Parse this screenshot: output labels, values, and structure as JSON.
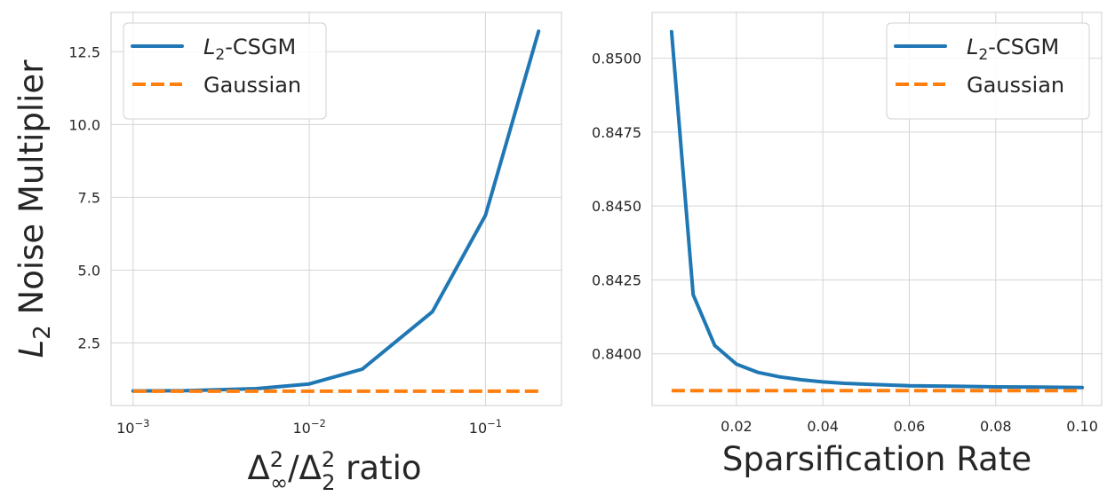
{
  "chart_data": [
    {
      "type": "line",
      "xscale": "log",
      "xlim": [
        0.00075,
        0.27
      ],
      "ylim": [
        0.35,
        13.85
      ],
      "xticks": [
        0.001,
        0.01,
        0.1
      ],
      "xtick_labels": [
        {
          "base": "10",
          "exp": "−3"
        },
        {
          "base": "10",
          "exp": "−2"
        },
        {
          "base": "10",
          "exp": "−1"
        }
      ],
      "yticks": [
        2.5,
        5.0,
        7.5,
        10.0,
        12.5
      ],
      "ytick_labels": [
        "2.5",
        "5.0",
        "7.5",
        "10.0",
        "12.5"
      ],
      "xlabel": {
        "delta": "Δ",
        "sup1": "2",
        "sub1": "∞",
        "slash": "/",
        "sup2": "2",
        "sub2": "2",
        "suffix": " ratio"
      },
      "ylabel": {
        "main": "L",
        "sub": "2",
        "rest": " Noise Multiplier"
      },
      "grid": true,
      "legend_position": "upper-left",
      "series": [
        {
          "name": {
            "main": "L",
            "sub": "2",
            "rest": "-CSGM"
          },
          "color": "#1f77b4",
          "style": "solid",
          "x": [
            0.001,
            0.002,
            0.005,
            0.01,
            0.02,
            0.05,
            0.1,
            0.2
          ],
          "y": [
            0.85,
            0.86,
            0.93,
            1.09,
            1.6,
            3.57,
            6.88,
            13.2
          ]
        },
        {
          "name": {
            "main": "Gaussian"
          },
          "color": "#ff7f0e",
          "style": "dashed",
          "x": [
            0.001,
            0.2
          ],
          "y": [
            0.84,
            0.84
          ]
        }
      ]
    },
    {
      "type": "line",
      "xscale": "linear",
      "xlim": [
        0.0005,
        0.1045
      ],
      "ylim": [
        0.83825,
        0.85155
      ],
      "xticks": [
        0.02,
        0.04,
        0.06,
        0.08,
        0.1
      ],
      "xtick_labels": [
        "0.02",
        "0.04",
        "0.06",
        "0.08",
        "0.10"
      ],
      "yticks": [
        0.84,
        0.8425,
        0.845,
        0.8475,
        0.85
      ],
      "ytick_labels": [
        "0.8400",
        "0.8425",
        "0.8450",
        "0.8475",
        "0.8500"
      ],
      "xlabel": {
        "text": "Sparsification Rate"
      },
      "grid": true,
      "legend_position": "upper-right",
      "series": [
        {
          "name": {
            "main": "L",
            "sub": "2",
            "rest": "-CSGM"
          },
          "color": "#1f77b4",
          "style": "solid",
          "x": [
            0.005,
            0.01,
            0.015,
            0.02,
            0.025,
            0.03,
            0.035,
            0.04,
            0.045,
            0.05,
            0.06,
            0.07,
            0.08,
            0.09,
            0.1
          ],
          "y": [
            0.8509,
            0.842,
            0.84028,
            0.83965,
            0.83937,
            0.83922,
            0.83912,
            0.83905,
            0.839,
            0.83897,
            0.83892,
            0.8389,
            0.83888,
            0.83887,
            0.83886
          ]
        },
        {
          "name": {
            "main": "Gaussian"
          },
          "color": "#ff7f0e",
          "style": "dashed",
          "x": [
            0.005,
            0.1
          ],
          "y": [
            0.83875,
            0.83875
          ]
        }
      ]
    }
  ]
}
